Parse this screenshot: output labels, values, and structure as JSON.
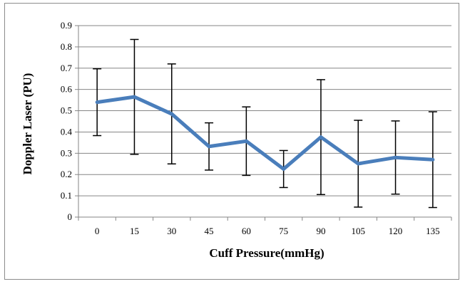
{
  "chart_data": {
    "type": "line",
    "title": "",
    "xlabel": "Cuff Pressure(mmHg)",
    "ylabel": "Doppler Laser (PU)",
    "categories": [
      "0",
      "15",
      "30",
      "45",
      "60",
      "75",
      "90",
      "105",
      "120",
      "135"
    ],
    "series": [
      {
        "name": "",
        "values": [
          0.54,
          0.565,
          0.485,
          0.332,
          0.357,
          0.226,
          0.376,
          0.251,
          0.28,
          0.27
        ],
        "error_upper": [
          0.697,
          0.835,
          0.72,
          0.443,
          0.518,
          0.313,
          0.646,
          0.455,
          0.452,
          0.495
        ],
        "error_lower": [
          0.383,
          0.295,
          0.25,
          0.221,
          0.196,
          0.139,
          0.106,
          0.047,
          0.108,
          0.045
        ],
        "color": "#4a7ebb"
      }
    ],
    "ylim": [
      0,
      0.9
    ],
    "yticks": [
      "0",
      "0.1",
      "0.2",
      "0.3",
      "0.4",
      "0.5",
      "0.6",
      "0.7",
      "0.8",
      "0.9"
    ],
    "grid": true,
    "legend": "none"
  }
}
